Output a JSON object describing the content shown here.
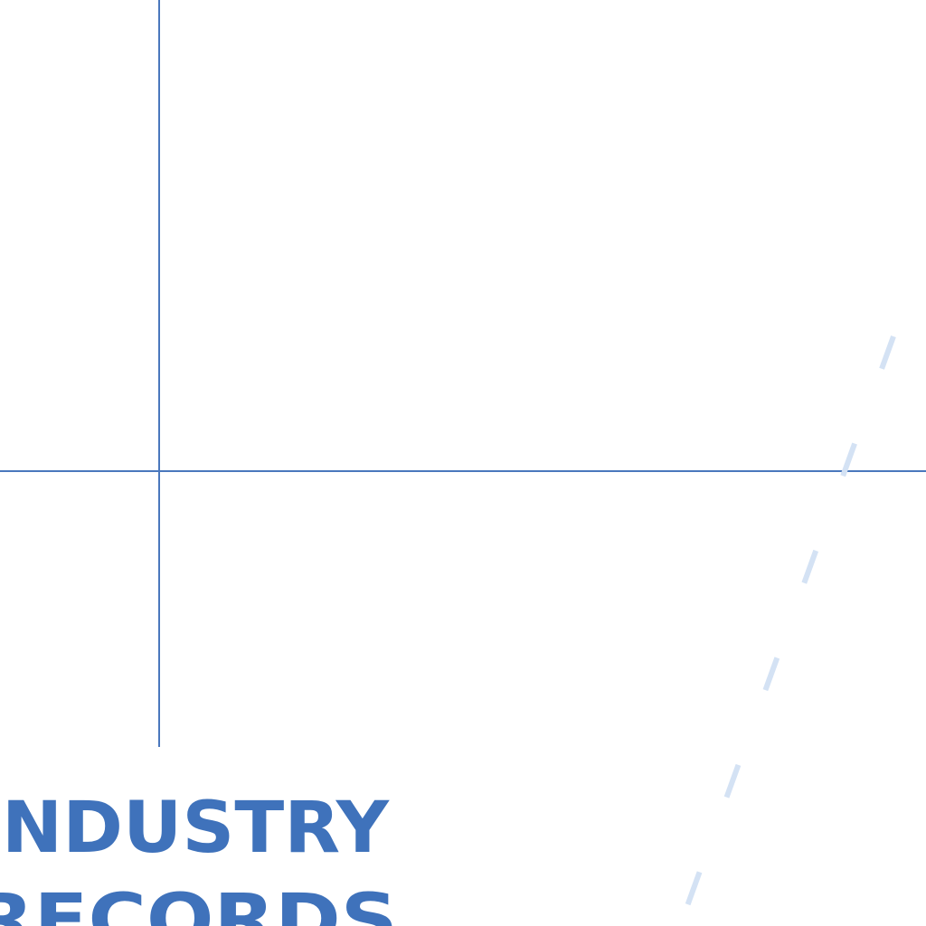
{
  "annotation": {
    "lines": [
      "INDUSTRY",
      "RECORDS"
    ]
  }
}
